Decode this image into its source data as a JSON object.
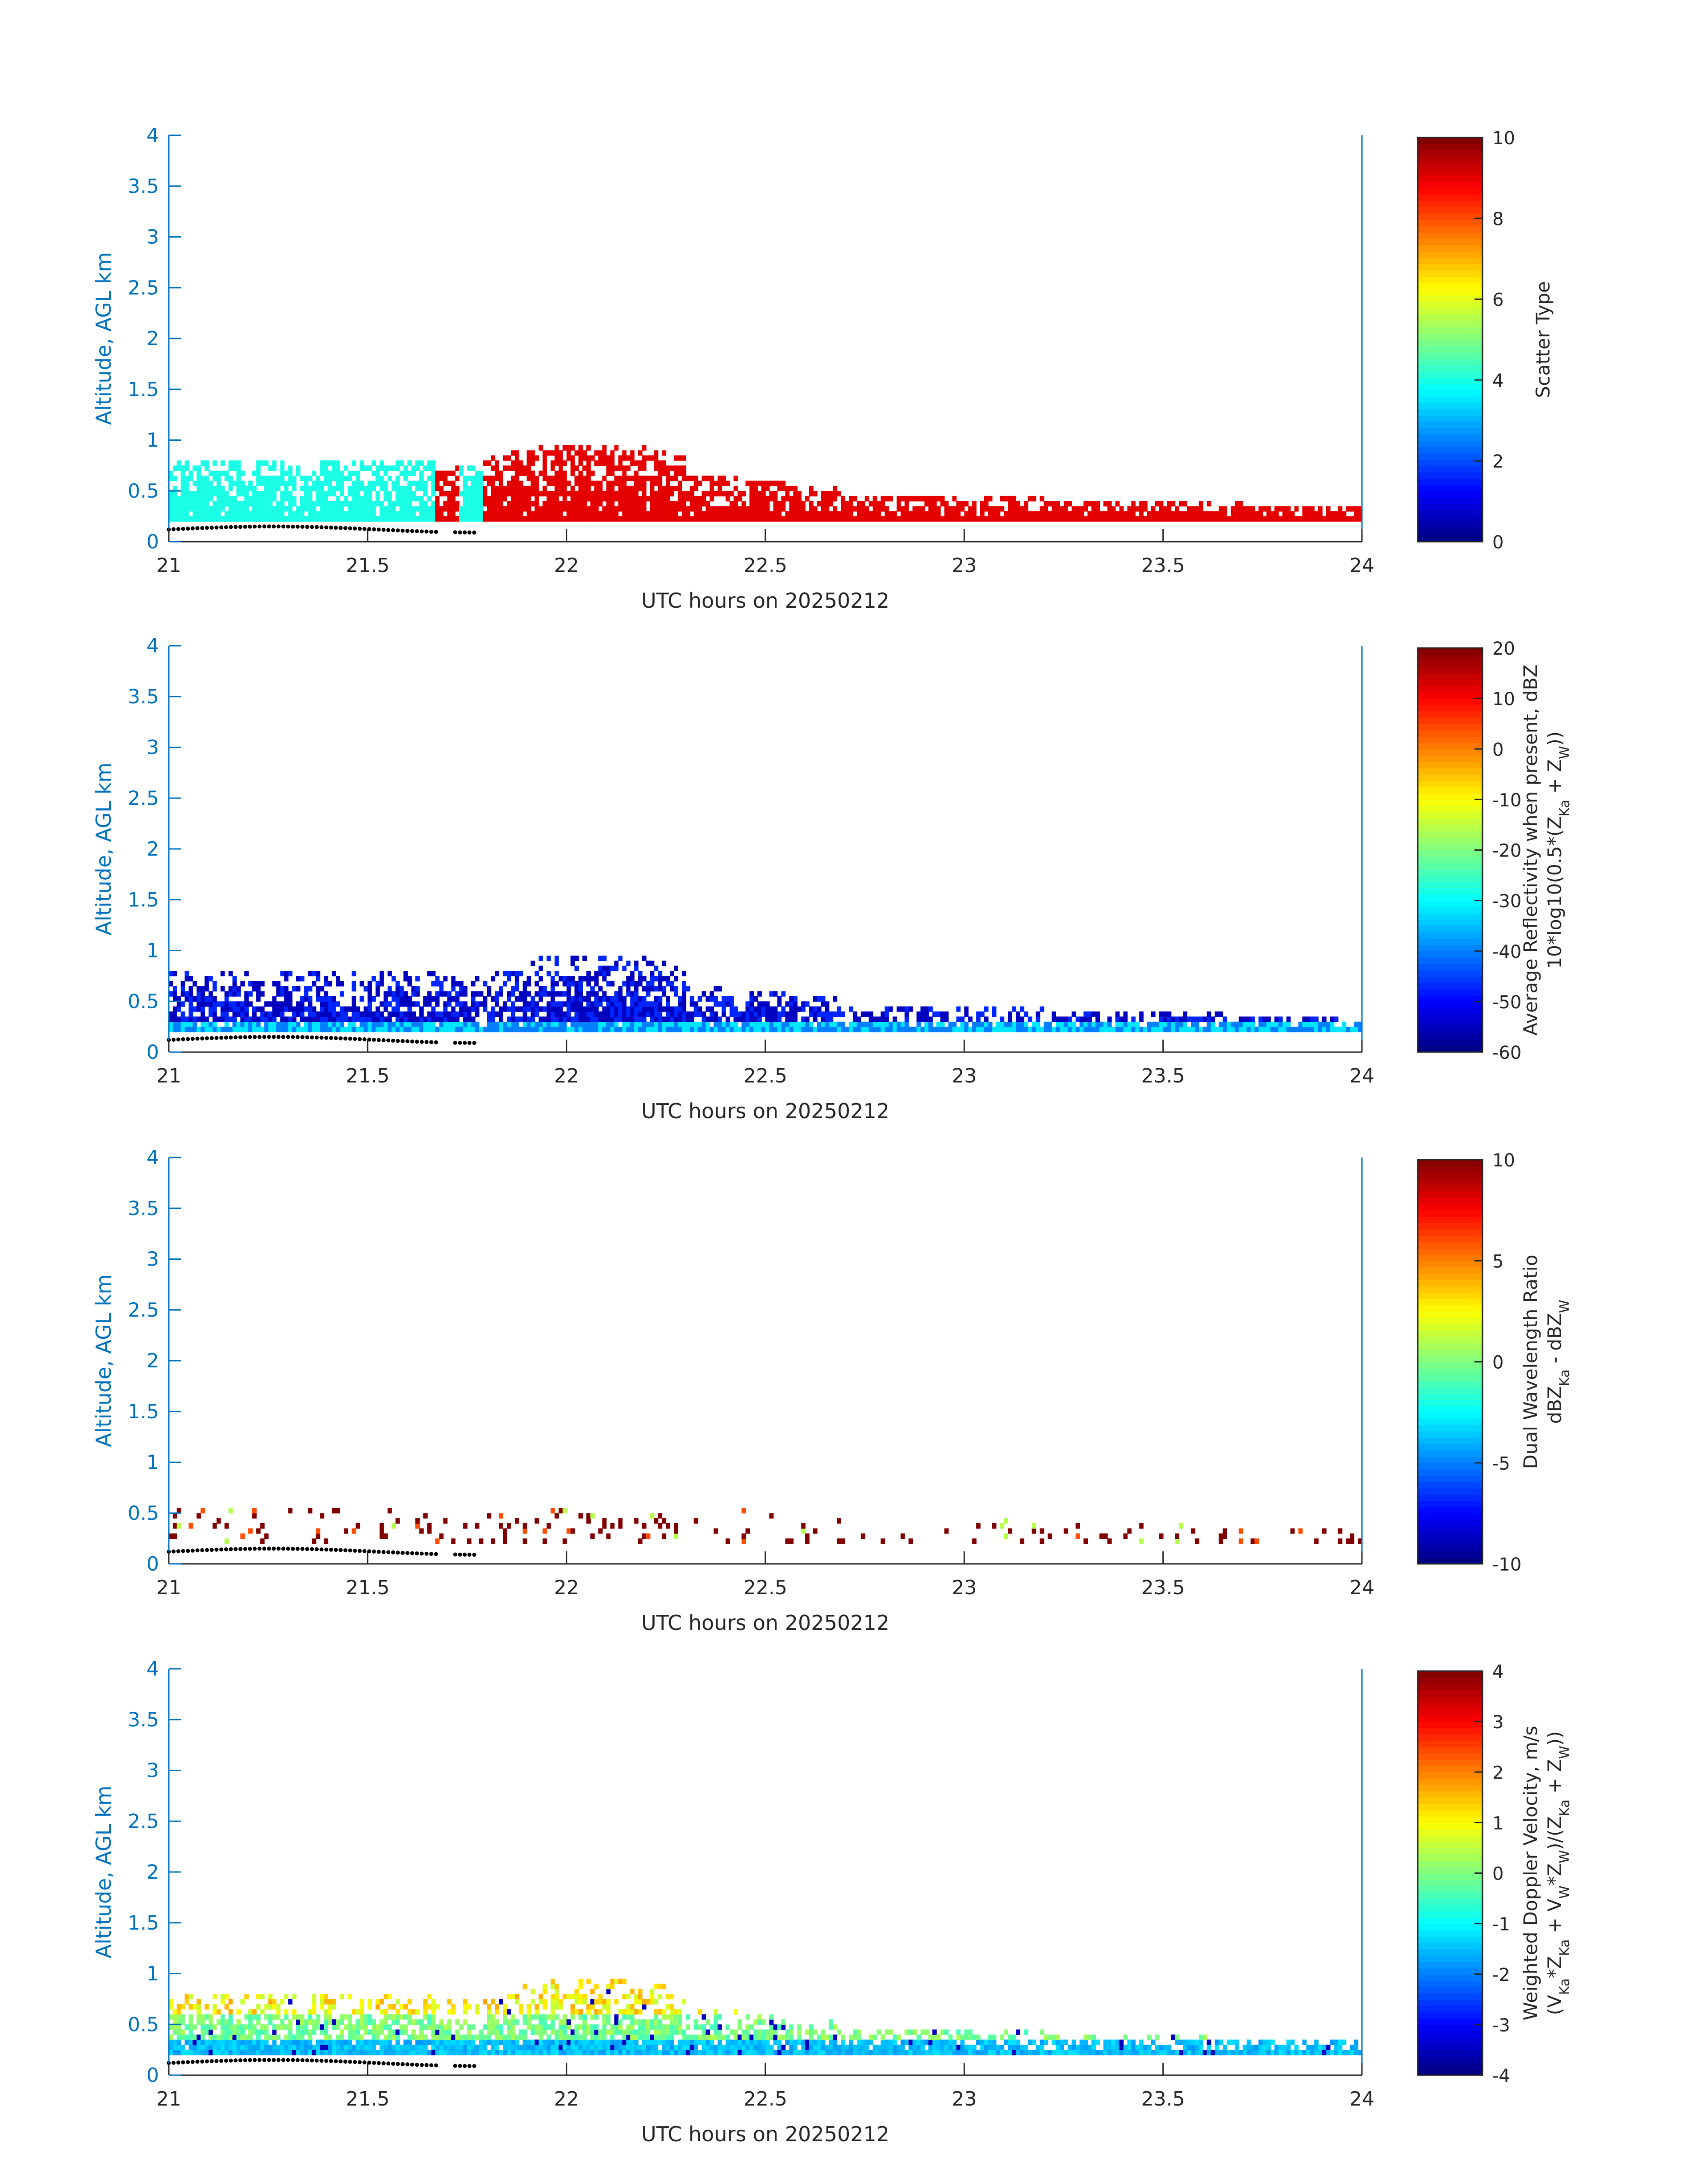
{
  "figure": {
    "background": "#ffffff",
    "axis_color": "#0072bd",
    "text_color": "#262626"
  },
  "chart_data": [
    {
      "type": "heatmap",
      "xlabel": "UTC hours on 20250212",
      "ylabel": "Altitude, AGL km",
      "xlim": [
        21,
        24
      ],
      "ylim": [
        0,
        4
      ],
      "xticks": [
        "21",
        "21.5",
        "22",
        "22.5",
        "23",
        "23.5",
        "24"
      ],
      "yticks": [
        "0",
        "0.5",
        "1",
        "1.5",
        "2",
        "2.5",
        "3",
        "3.5",
        "4"
      ],
      "colorbar": {
        "label_lines": [
          "Scatter Type"
        ],
        "range": [
          0,
          10
        ],
        "ticks": [
          "0",
          "2",
          "4",
          "6",
          "8",
          "10"
        ],
        "colormap": "jet"
      },
      "regions": [
        {
          "label": "scatter type 4 (cyan)",
          "value": 4,
          "x_range": [
            21.0,
            21.67
          ],
          "y_range": [
            0.2,
            0.78
          ]
        },
        {
          "label": "scatter type 9 (red-orange)",
          "value": 9,
          "x_range": [
            21.67,
            21.73
          ],
          "y_range": [
            0.2,
            0.78
          ]
        },
        {
          "label": "scatter type 9 (red-orange)",
          "value": 9,
          "x_range": [
            21.79,
            24.0
          ],
          "y_range": [
            0.2,
            0.95
          ]
        }
      ],
      "ground_points": "dotted black line near 0.12–0.16 km from 21.0 to 21.78 h"
    },
    {
      "type": "heatmap",
      "xlabel": "UTC hours on 20250212",
      "ylabel": "Altitude, AGL km",
      "xlim": [
        21,
        24
      ],
      "ylim": [
        0,
        4
      ],
      "xticks": [
        "21",
        "21.5",
        "22",
        "22.5",
        "23",
        "23.5",
        "24"
      ],
      "yticks": [
        "0",
        "0.5",
        "1",
        "1.5",
        "2",
        "2.5",
        "3",
        "3.5",
        "4"
      ],
      "colorbar": {
        "label_lines": [
          "Average Reflectivity when present, dBZ",
          "10*log10(0.5*(Z",
          "Ka",
          " + Z",
          "W",
          "))"
        ],
        "range": [
          -60,
          20
        ],
        "ticks": [
          "-60",
          "-50",
          "-40",
          "-30",
          "-20",
          "-10",
          "0",
          "10",
          "20"
        ],
        "colormap": "jet"
      },
      "typical_values_dBZ": [
        -55,
        -45,
        -35
      ],
      "echo_top_km": 0.95
    },
    {
      "type": "heatmap",
      "xlabel": "UTC hours on 20250212",
      "ylabel": "Altitude, AGL km",
      "xlim": [
        21,
        24
      ],
      "ylim": [
        0,
        4
      ],
      "xticks": [
        "21",
        "21.5",
        "22",
        "22.5",
        "23",
        "23.5",
        "24"
      ],
      "yticks": [
        "0",
        "0.5",
        "1",
        "1.5",
        "2",
        "2.5",
        "3",
        "3.5",
        "4"
      ],
      "colorbar": {
        "label_lines": [
          "Dual Wavelength Ratio",
          "dBZ",
          "Ka",
          " - dBZ",
          "W"
        ],
        "range": [
          -10,
          10
        ],
        "ticks": [
          "-10",
          "-5",
          "0",
          "5",
          "10"
        ],
        "colormap": "jet"
      },
      "typical_values_dB": [
        10,
        6,
        1
      ],
      "echo_top_km": 0.7
    },
    {
      "type": "heatmap",
      "xlabel": "UTC hours on 20250212",
      "ylabel": "Altitude, AGL km",
      "xlim": [
        21,
        24
      ],
      "ylim": [
        0,
        4
      ],
      "xticks": [
        "21",
        "21.5",
        "22",
        "22.5",
        "23",
        "23.5",
        "24"
      ],
      "yticks": [
        "0",
        "0.5",
        "1",
        "1.5",
        "2",
        "2.5",
        "3",
        "3.5",
        "4"
      ],
      "colorbar": {
        "label_lines": [
          "Weighted Doppler Velocity, m/s",
          "(V",
          "Ka",
          "*Z",
          "Ka",
          " + V",
          "W",
          "*Z",
          "W",
          ")/(Z",
          "Ka",
          " + Z",
          "W",
          "))"
        ],
        "range": [
          -4,
          4
        ],
        "ticks": [
          "-4",
          "-3",
          "-2",
          "-1",
          "0",
          "1",
          "2",
          "3",
          "4"
        ],
        "colormap": "jet"
      },
      "typical_values_ms": [
        -1.5,
        -0.5,
        0.5,
        1.5
      ],
      "echo_top_km": 0.95
    }
  ]
}
